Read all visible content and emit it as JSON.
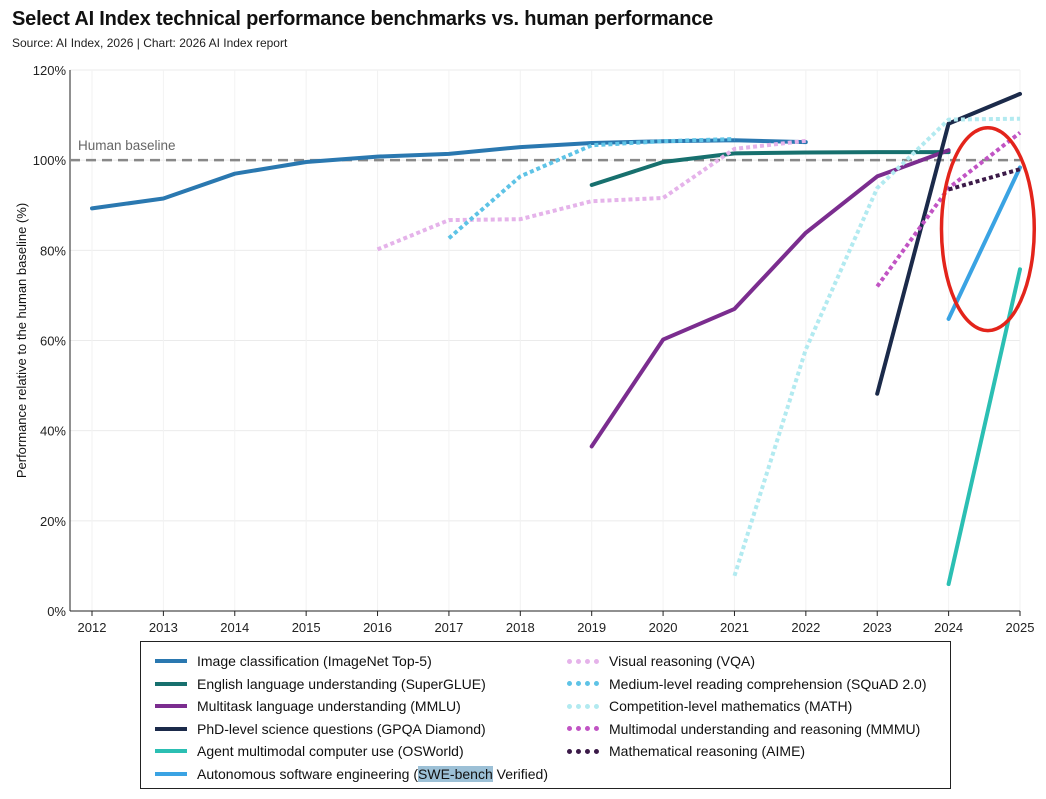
{
  "title": "Select AI Index technical performance benchmarks vs. human performance",
  "subtitle": "Source: AI Index, 2026 | Chart: 2026 AI Index report",
  "chart_data": {
    "type": "line",
    "ylabel": "Performance relative to the human baseline (%)",
    "xlim": [
      2012,
      2025
    ],
    "ylim": [
      0,
      120
    ],
    "x_ticks": [
      2012,
      2013,
      2014,
      2015,
      2016,
      2017,
      2018,
      2019,
      2020,
      2021,
      2022,
      2023,
      2024,
      2025
    ],
    "y_ticks": [
      0,
      20,
      40,
      60,
      80,
      100,
      120
    ],
    "y_tick_labels": [
      "0%",
      "20%",
      "40%",
      "60%",
      "80%",
      "100%",
      "120%"
    ],
    "grid": true,
    "baseline": {
      "label": "Human baseline",
      "value": 100,
      "color": "#888888"
    },
    "series": [
      {
        "name": "Image classification (ImageNet Top-5)",
        "color": "#2a78b0",
        "style": "solid",
        "x": [
          2012,
          2013,
          2014,
          2015,
          2016,
          2017,
          2018,
          2019,
          2020,
          2021,
          2022
        ],
        "y": [
          89.3,
          91.5,
          97.0,
          99.6,
          100.8,
          101.4,
          102.9,
          103.8,
          104.2,
          104.4,
          104.0
        ]
      },
      {
        "name": "English language understanding (SuperGLUE)",
        "color": "#17706e",
        "style": "solid",
        "x": [
          2019,
          2020,
          2021,
          2022,
          2023,
          2024
        ],
        "y": [
          94.5,
          99.6,
          101.5,
          101.7,
          101.8,
          101.8
        ]
      },
      {
        "name": "Multitask language understanding (MMLU)",
        "color": "#7b2d8f",
        "style": "solid",
        "x": [
          2019,
          2020,
          2021,
          2022,
          2023,
          2024
        ],
        "y": [
          36.5,
          60.2,
          67.0,
          83.9,
          96.4,
          102.2
        ]
      },
      {
        "name": "PhD-level science questions (GPQA Diamond)",
        "color": "#1b2a4a",
        "style": "solid",
        "x": [
          2023,
          2024,
          2025
        ],
        "y": [
          48.2,
          108.1,
          114.7
        ]
      },
      {
        "name": "Agent multimodal computer use (OSWorld)",
        "color": "#2bbfb3",
        "style": "solid",
        "x": [
          2024,
          2025
        ],
        "y": [
          6.0,
          75.8
        ]
      },
      {
        "name": "Autonomous software engineering (SWE-bench Verified)",
        "color": "#3aa3e3",
        "style": "solid",
        "x": [
          2024,
          2025
        ],
        "y": [
          64.8,
          98.4
        ]
      },
      {
        "name": "Visual reasoning (VQA)",
        "color": "#e5b3ea",
        "style": "dotted",
        "x": [
          2016,
          2017,
          2018,
          2019,
          2020,
          2021,
          2022
        ],
        "y": [
          80.2,
          86.7,
          86.9,
          90.9,
          91.6,
          102.5,
          104.3
        ]
      },
      {
        "name": "Medium-level reading comprehension (SQuAD 2.0)",
        "color": "#5ec3e6",
        "style": "dotted",
        "x": [
          2017,
          2018,
          2019,
          2020,
          2021
        ],
        "y": [
          82.7,
          96.4,
          103.3,
          104.2,
          104.7
        ]
      },
      {
        "name": "Competition-level mathematics (MATH)",
        "color": "#b2eaf0",
        "style": "dotted",
        "x": [
          2021,
          2022,
          2023,
          2024,
          2025
        ],
        "y": [
          7.8,
          58.0,
          93.8,
          109.0,
          109.2
        ]
      },
      {
        "name": "Multimodal understanding and reasoning (MMMU)",
        "color": "#c154c4",
        "style": "dotted",
        "x": [
          2023,
          2024,
          2025
        ],
        "y": [
          72.0,
          93.8,
          106.1
        ]
      },
      {
        "name": "Mathematical reasoning (AIME)",
        "color": "#3b1a48",
        "style": "dotted",
        "x": [
          2024,
          2025
        ],
        "y": [
          93.5,
          98.0
        ]
      }
    ],
    "annotation": {
      "shape": "ellipse",
      "color": "#e3241b",
      "center": [
        2024.55,
        84.7
      ],
      "radii": [
        0.65,
        22.5
      ]
    },
    "legend_position": "bottom",
    "legend_highlight": "SWE-bench"
  }
}
